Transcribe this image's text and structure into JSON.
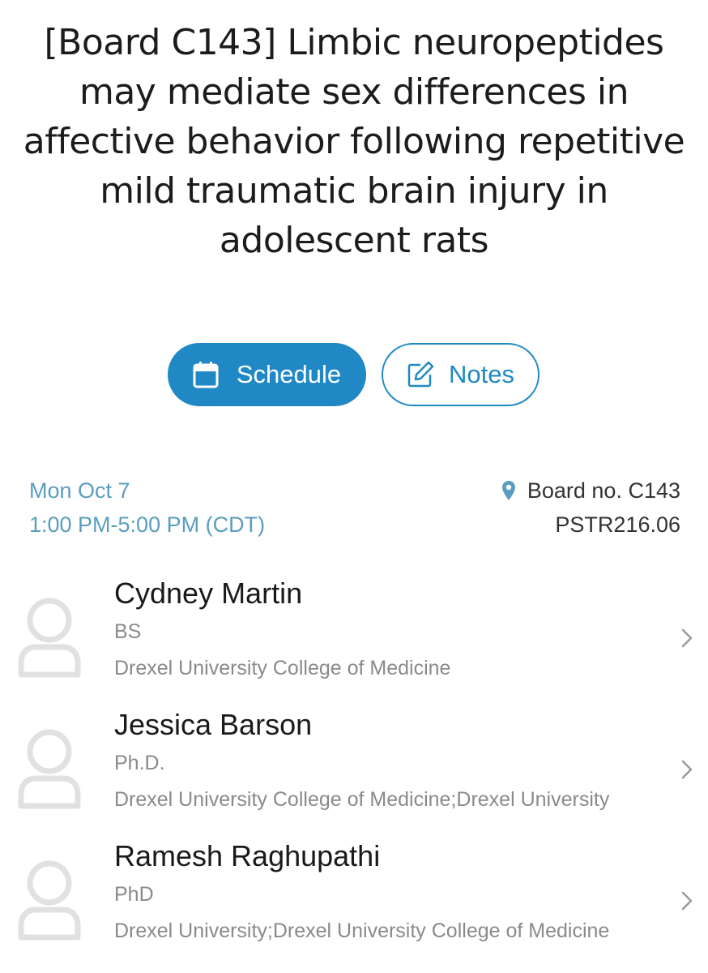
{
  "title": "[Board C143] Limbic neuropeptides may mediate sex differences in affective behavior following repetitive mild traumatic brain injury in adolescent rats",
  "buttons": {
    "schedule_label": "Schedule",
    "schedule_icon": "calendar-icon",
    "notes_label": "Notes",
    "notes_icon": "edit-note-icon"
  },
  "session": {
    "date": "Mon Oct 7",
    "time": "1:00 PM-5:00 PM (CDT)",
    "board": "Board no. C143",
    "board_icon": "location-pin-icon",
    "code": "PSTR216.06"
  },
  "authors": [
    {
      "name": "Cydney Martin",
      "degree": "BS",
      "affiliation": "Drexel University College of Medicine"
    },
    {
      "name": "Jessica Barson",
      "degree": "Ph.D.",
      "affiliation": "Drexel University College of Medicine;Drexel University"
    },
    {
      "name": "Ramesh Raghupathi",
      "degree": "PhD",
      "affiliation": "Drexel University;Drexel University College of Medicine"
    }
  ],
  "colors": {
    "accent": "#2089c5",
    "meta_blue": "#5a9dbf",
    "muted_text": "#8a8a8a"
  }
}
